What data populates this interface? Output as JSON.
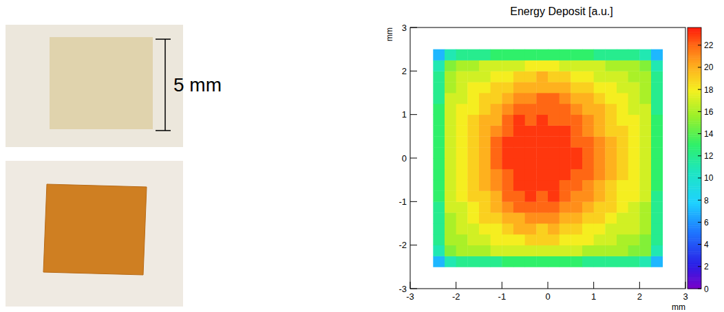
{
  "photo": {
    "scale_label": "5 mm"
  },
  "chart_data": {
    "type": "heatmap",
    "title": "Energy Deposit [a.u.]",
    "x_label": "mm",
    "y_label": "mm",
    "xlim": [
      -3,
      3
    ],
    "ylim": [
      -3,
      3
    ],
    "xticks": [
      -3,
      -2,
      -1,
      0,
      1,
      2,
      3
    ],
    "yticks": [
      -3,
      -2,
      -1,
      0,
      1,
      2,
      3
    ],
    "x_edges": [
      -2.5,
      -2.25,
      -2,
      -1.75,
      -1.5,
      -1.25,
      -1,
      -0.75,
      -0.5,
      -0.25,
      0,
      0.25,
      0.5,
      0.75,
      1,
      1.25,
      1.5,
      1.75,
      2,
      2.25,
      2.5
    ],
    "y_edges": [
      -2.5,
      -2.25,
      -2,
      -1.75,
      -1.5,
      -1.25,
      -1,
      -0.75,
      -0.5,
      -0.25,
      0,
      0.25,
      0.5,
      0.75,
      1,
      1.25,
      1.5,
      1.75,
      2,
      2.25,
      2.5
    ],
    "cells": [
      [
        7,
        11,
        12,
        12,
        12,
        12,
        13,
        13,
        13,
        13,
        13,
        13,
        13,
        12,
        12,
        12,
        12,
        12,
        11,
        7
      ],
      [
        11,
        15,
        16,
        16,
        16,
        17,
        17,
        17,
        17,
        17,
        17,
        17,
        17,
        16,
        16,
        16,
        16,
        15,
        15,
        11
      ],
      [
        12,
        16,
        16,
        17,
        17,
        18,
        18,
        18,
        19,
        19,
        19,
        18,
        18,
        18,
        17,
        17,
        16,
        16,
        15,
        12
      ],
      [
        12,
        16,
        17,
        17,
        18,
        18,
        19,
        20,
        20,
        19,
        20,
        19,
        19,
        18,
        18,
        17,
        17,
        17,
        16,
        12
      ],
      [
        12,
        16,
        17,
        18,
        19,
        19,
        20,
        20,
        21,
        21,
        21,
        20,
        20,
        19,
        19,
        18,
        17,
        17,
        16,
        12
      ],
      [
        12,
        17,
        17,
        18,
        19,
        20,
        21,
        22,
        22,
        22,
        22,
        21,
        21,
        20,
        19,
        19,
        18,
        17,
        16,
        12
      ],
      [
        13,
        17,
        18,
        19,
        19,
        20,
        22,
        22,
        23,
        22,
        23,
        22,
        21,
        21,
        20,
        19,
        18,
        18,
        17,
        12
      ],
      [
        13,
        17,
        18,
        19,
        20,
        21,
        22,
        23,
        23,
        23,
        23,
        22,
        22,
        21,
        20,
        19,
        18,
        18,
        17,
        13
      ],
      [
        13,
        17,
        18,
        19,
        20,
        21,
        22,
        23,
        23,
        23,
        23,
        23,
        22,
        22,
        21,
        20,
        19,
        18,
        17,
        13
      ],
      [
        13,
        17,
        18,
        19,
        20,
        22,
        23,
        23,
        23,
        23,
        23,
        23,
        23,
        22,
        21,
        20,
        19,
        18,
        17,
        13
      ],
      [
        13,
        17,
        18,
        19,
        20,
        22,
        23,
        23,
        23,
        23,
        23,
        23,
        23,
        22,
        21,
        20,
        19,
        18,
        17,
        13
      ],
      [
        13,
        17,
        18,
        19,
        20,
        22,
        23,
        23,
        23,
        23,
        23,
        23,
        22,
        22,
        21,
        20,
        19,
        18,
        17,
        13
      ],
      [
        13,
        17,
        18,
        19,
        20,
        21,
        22,
        23,
        23,
        23,
        23,
        23,
        22,
        21,
        20,
        19,
        19,
        18,
        17,
        13
      ],
      [
        13,
        17,
        18,
        19,
        20,
        20,
        22,
        23,
        22,
        23,
        22,
        22,
        22,
        21,
        20,
        19,
        18,
        18,
        17,
        13
      ],
      [
        13,
        17,
        18,
        18,
        19,
        20,
        21,
        22,
        22,
        22,
        22,
        22,
        21,
        20,
        20,
        19,
        18,
        17,
        17,
        12
      ],
      [
        12,
        17,
        17,
        18,
        19,
        19,
        20,
        21,
        21,
        22,
        22,
        21,
        20,
        20,
        19,
        18,
        18,
        17,
        16,
        12
      ],
      [
        12,
        16,
        17,
        18,
        18,
        19,
        19,
        20,
        20,
        20,
        20,
        20,
        19,
        19,
        18,
        18,
        17,
        17,
        16,
        12
      ],
      [
        12,
        16,
        17,
        17,
        17,
        18,
        18,
        19,
        19,
        20,
        19,
        19,
        18,
        18,
        17,
        17,
        17,
        16,
        16,
        12
      ],
      [
        11,
        15,
        16,
        16,
        17,
        17,
        17,
        17,
        18,
        18,
        18,
        17,
        17,
        17,
        17,
        16,
        16,
        16,
        15,
        11
      ],
      [
        7,
        11,
        12,
        12,
        12,
        13,
        13,
        13,
        13,
        13,
        13,
        13,
        13,
        13,
        12,
        12,
        12,
        12,
        11,
        7
      ]
    ],
    "zlim": [
      0,
      23.6
    ],
    "zticks": [
      0,
      2,
      4,
      6,
      8,
      10,
      12,
      14,
      16,
      18,
      20,
      22
    ]
  }
}
